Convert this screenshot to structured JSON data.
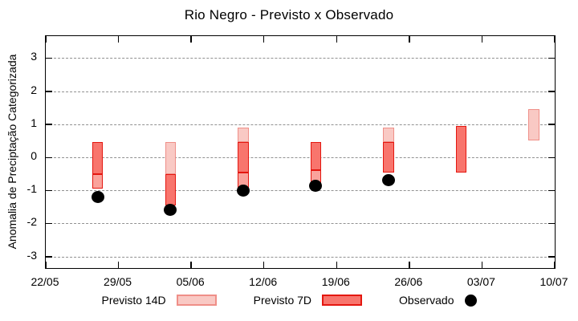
{
  "chart_data": {
    "type": "bar",
    "title": "Rio Negro - Previsto x Observado",
    "ylabel": "Anomalia de Preciptação Categorizada",
    "xlabel": "",
    "ylim": [
      -3.5,
      3.5
    ],
    "grid": "horizontal-dashed",
    "legend_position": "bottom-center",
    "yticks": [
      3,
      2,
      1,
      0,
      -1,
      -2,
      -3
    ],
    "xticks": [
      "22/05",
      "29/05",
      "05/06",
      "12/06",
      "19/06",
      "26/06",
      "03/07",
      "10/07"
    ],
    "legend": [
      {
        "label": "Previsto 14D",
        "shade": "light"
      },
      {
        "label": "Previsto 7D",
        "shade": "dark"
      },
      {
        "label": "Observado",
        "shade": "observed"
      }
    ],
    "bars": [
      {
        "date": "27/05",
        "x_day": 5,
        "segments": [
          {
            "shade": "dark",
            "from": 0.45,
            "to": -0.5
          },
          {
            "shade": "medium",
            "from": -0.5,
            "to": -0.95
          }
        ],
        "observed": -1.2
      },
      {
        "date": "03/06",
        "x_day": 12,
        "segments": [
          {
            "shade": "light",
            "from": 0.45,
            "to": -0.5
          },
          {
            "shade": "dark",
            "from": -0.5,
            "to": -1.45
          }
        ],
        "observed": -1.6
      },
      {
        "date": "10/06",
        "x_day": 19,
        "segments": [
          {
            "shade": "light",
            "from": 0.9,
            "to": 0.45
          },
          {
            "shade": "dark",
            "from": 0.45,
            "to": -0.45
          },
          {
            "shade": "medium",
            "from": -0.45,
            "to": -1.0
          }
        ],
        "observed": -1.0
      },
      {
        "date": "17/06",
        "x_day": 26,
        "segments": [
          {
            "shade": "dark",
            "from": 0.45,
            "to": -0.4
          },
          {
            "shade": "medium",
            "from": -0.4,
            "to": -0.8
          }
        ],
        "observed": -0.85
      },
      {
        "date": "24/06",
        "x_day": 33,
        "segments": [
          {
            "shade": "light",
            "from": 0.9,
            "to": 0.45
          },
          {
            "shade": "dark",
            "from": 0.45,
            "to": -0.45
          }
        ],
        "observed": -0.7
      },
      {
        "date": "01/07",
        "x_day": 40,
        "segments": [
          {
            "shade": "dark",
            "from": 0.95,
            "to": -0.45
          }
        ],
        "observed": null
      },
      {
        "date": "08/07",
        "x_day": 47,
        "segments": [
          {
            "shade": "light",
            "from": 1.45,
            "to": 0.5
          }
        ],
        "observed": null
      }
    ],
    "colors": {
      "light_fill": "#f9c9c4",
      "light_border": "#ef8f88",
      "dark_fill": "#f8756d",
      "dark_border": "#e41710",
      "medium_fill": "#faa29b",
      "medium_border": "#e41710",
      "observed": "#000000",
      "grid": "#919191",
      "frame": "#000000"
    }
  }
}
